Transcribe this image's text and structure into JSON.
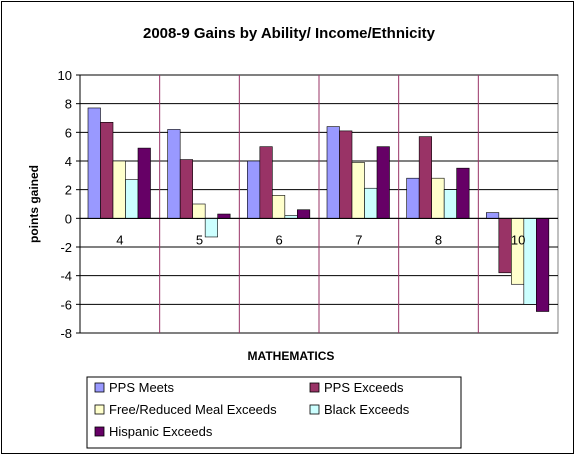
{
  "chart_data": {
    "type": "bar",
    "title": "2008-9 Gains by Ability/ Income/Ethnicity",
    "xlabel": "MATHEMATICS",
    "ylabel": "points gained",
    "categories": [
      "4",
      "5",
      "6",
      "7",
      "8",
      "10"
    ],
    "ylim": [
      -8,
      10
    ],
    "yticks": [
      10,
      8,
      6,
      4,
      2,
      0,
      -2,
      -4,
      -6,
      -8
    ],
    "grid": true,
    "legend_position": "bottom",
    "series": [
      {
        "name": "PPS Meets",
        "color": "#9999FF",
        "values": [
          7.7,
          6.2,
          4.0,
          6.4,
          2.8,
          0.4
        ]
      },
      {
        "name": "PPS Exceeds",
        "color": "#993366",
        "values": [
          6.7,
          4.1,
          5.0,
          6.1,
          5.7,
          -3.8
        ]
      },
      {
        "name": "Free/Reduced Meal Exceeds",
        "color": "#FFFFCC",
        "values": [
          4.0,
          1.0,
          1.6,
          3.9,
          2.8,
          -4.6
        ]
      },
      {
        "name": "Black Exceeds",
        "color": "#CCFFFF",
        "values": [
          2.7,
          -1.3,
          0.2,
          2.1,
          2.0,
          -6.0
        ]
      },
      {
        "name": "Hispanic Exceeds",
        "color": "#660066",
        "values": [
          4.9,
          0.3,
          0.6,
          5.0,
          3.5,
          -6.5
        ]
      }
    ]
  }
}
